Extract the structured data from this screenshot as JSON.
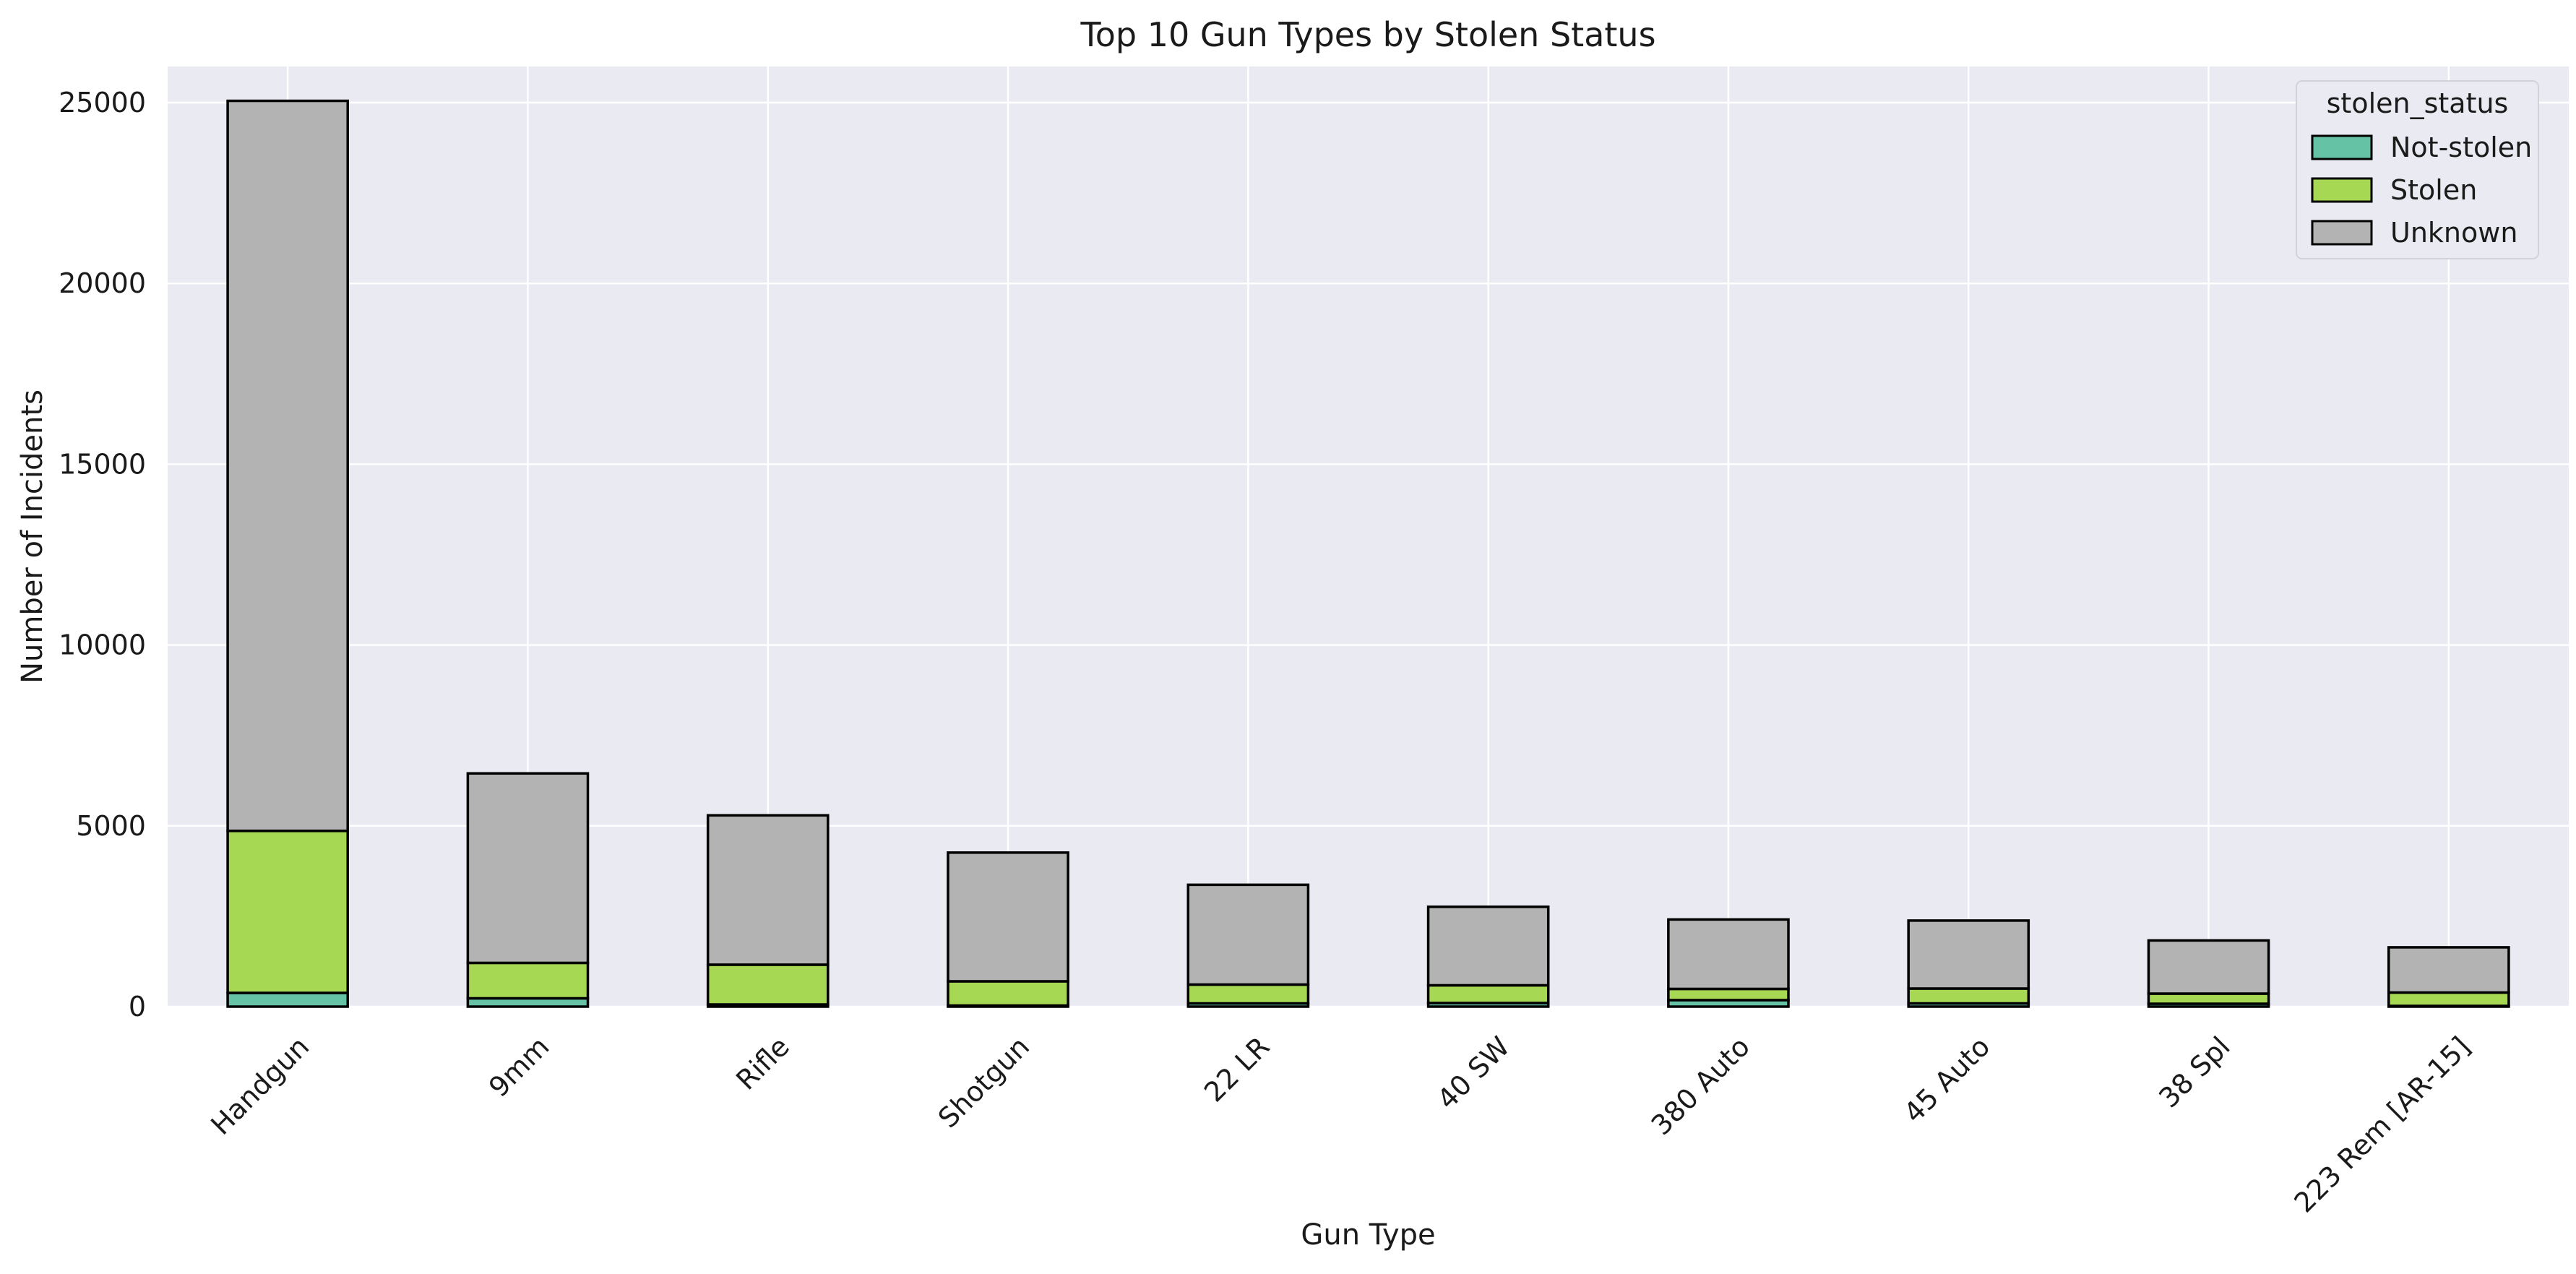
{
  "chart_data": {
    "type": "bar",
    "stacked": true,
    "title": "Top 10 Gun Types by Stolen Status",
    "xlabel": "Gun Type",
    "ylabel": "Number of Incidents",
    "ylim": [
      0,
      26000
    ],
    "yticks": [
      0,
      5000,
      10000,
      15000,
      20000,
      25000
    ],
    "grid": true,
    "legend_title": "stolen_status",
    "legend_position": "top-right",
    "categories": [
      "Handgun",
      "9mm",
      "Rifle",
      "Shotgun",
      "22 LR",
      "40 SW",
      "380 Auto",
      "45 Auto",
      "38 Spl",
      "223 Rem [AR-15]"
    ],
    "series": [
      {
        "name": "Not-stolen",
        "color": "#66c2a5",
        "values": [
          380,
          230,
          60,
          30,
          90,
          100,
          180,
          90,
          80,
          20
        ]
      },
      {
        "name": "Stolen",
        "color": "#a6d854",
        "values": [
          4480,
          980,
          1100,
          670,
          520,
          490,
          310,
          410,
          280,
          370
        ]
      },
      {
        "name": "Unknown",
        "color": "#b3b3b3",
        "values": [
          20190,
          5240,
          4130,
          3560,
          2760,
          2170,
          1920,
          1880,
          1470,
          1250
        ]
      }
    ]
  }
}
